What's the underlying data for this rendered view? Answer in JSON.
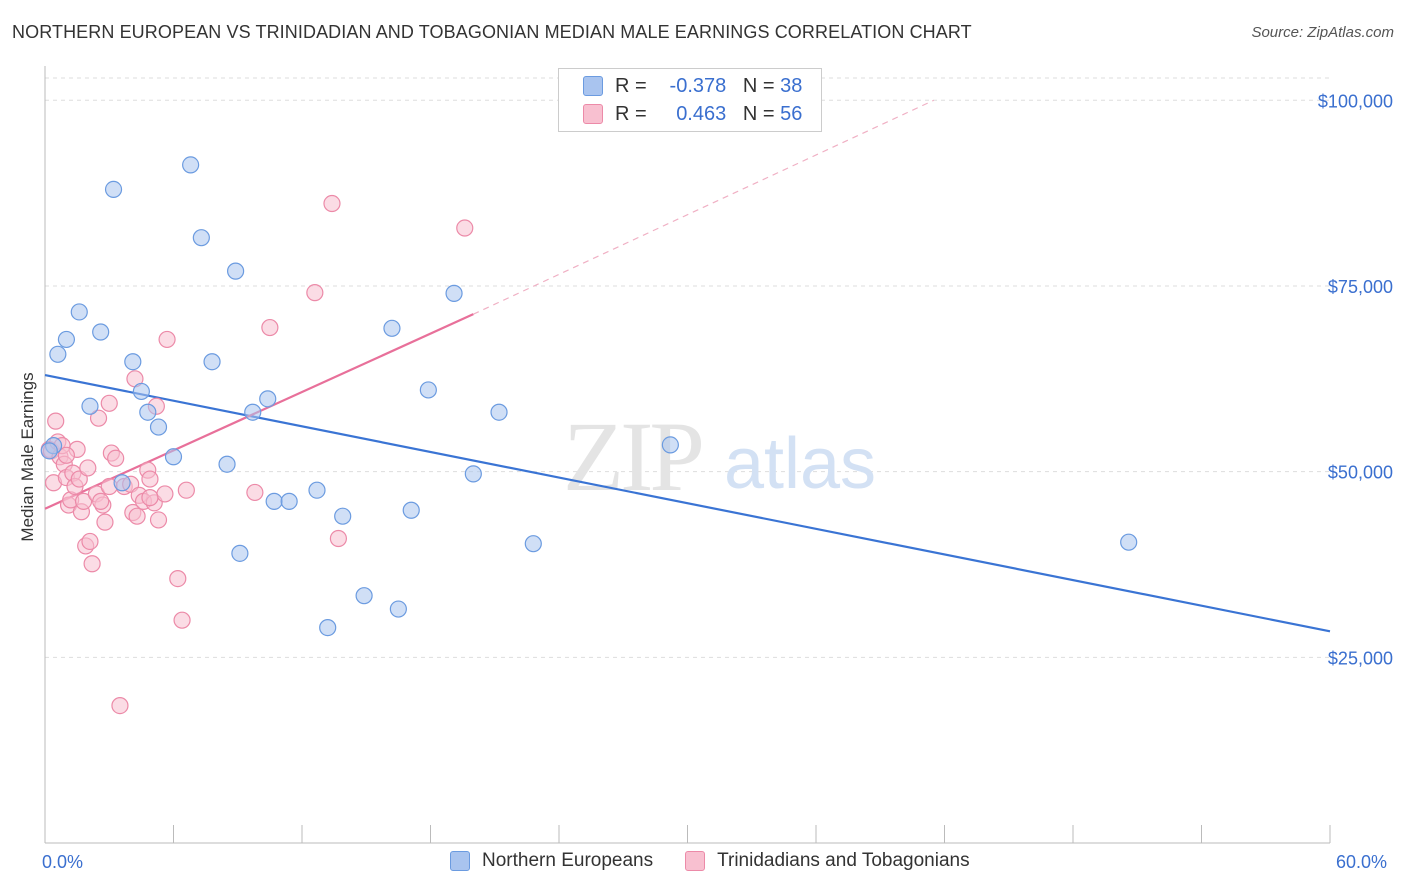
{
  "header": {
    "title": "NORTHERN EUROPEAN VS TRINIDADIAN AND TOBAGONIAN MEDIAN MALE EARNINGS CORRELATION CHART",
    "source": "Source: ZipAtlas.com"
  },
  "legend_top": {
    "rows": [
      {
        "r_label": "R =",
        "r_value": "-0.378",
        "n_label": "N =",
        "n_value": "38",
        "color": "#a9c4ef",
        "border": "#6b9be0"
      },
      {
        "r_label": "R =",
        "r_value": "0.463",
        "n_label": "N =",
        "n_value": "56",
        "color": "#f8c0d0",
        "border": "#ec8aa8"
      }
    ]
  },
  "legend_bottom": {
    "items": [
      {
        "label": "Northern Europeans",
        "color": "#a9c4ef",
        "border": "#6b9be0"
      },
      {
        "label": "Trinidadians and Tobagonians",
        "color": "#f8c0d0",
        "border": "#ec8aa8"
      }
    ]
  },
  "watermark": {
    "zip": "ZIP",
    "atlas": "atlas"
  },
  "chart_data": {
    "type": "scatter",
    "title": "NORTHERN EUROPEAN VS TRINIDADIAN AND TOBAGONIAN MEDIAN MALE EARNINGS CORRELATION CHART",
    "xlabel": "",
    "ylabel": "Median Male Earnings",
    "xlim": [
      0,
      60
    ],
    "ylim": [
      0,
      103000
    ],
    "x_tick_labels": [
      "0.0%",
      "60.0%"
    ],
    "y_ticks": [
      25000,
      50000,
      75000,
      100000
    ],
    "y_tick_labels": [
      "$25,000",
      "$50,000",
      "$75,000",
      "$100,000"
    ],
    "grid": true,
    "legend_position": "top-center",
    "series": [
      {
        "name": "Northern Europeans",
        "color": "#6b9be0",
        "fill": "#a9c4ef",
        "trend": {
          "x0": 0,
          "y0": 63000,
          "x1": 60,
          "y1": 28500,
          "dashed_to": null
        },
        "points": [
          [
            0.4,
            53500
          ],
          [
            0.6,
            65800
          ],
          [
            1.0,
            67800
          ],
          [
            1.6,
            71500
          ],
          [
            2.1,
            58800
          ],
          [
            2.6,
            68800
          ],
          [
            3.2,
            88000
          ],
          [
            3.6,
            48500
          ],
          [
            4.1,
            64800
          ],
          [
            4.5,
            60800
          ],
          [
            4.8,
            58000
          ],
          [
            5.3,
            56000
          ],
          [
            6.0,
            52000
          ],
          [
            6.8,
            91300
          ],
          [
            7.3,
            81500
          ],
          [
            7.8,
            64800
          ],
          [
            8.5,
            51000
          ],
          [
            8.9,
            77000
          ],
          [
            9.1,
            39000
          ],
          [
            9.7,
            58000
          ],
          [
            10.4,
            59800
          ],
          [
            10.7,
            46000
          ],
          [
            11.4,
            46000
          ],
          [
            12.7,
            47500
          ],
          [
            13.2,
            29000
          ],
          [
            13.9,
            44000
          ],
          [
            14.9,
            33300
          ],
          [
            16.2,
            69300
          ],
          [
            16.5,
            31500
          ],
          [
            17.1,
            44800
          ],
          [
            17.9,
            61000
          ],
          [
            19.1,
            74000
          ],
          [
            20.0,
            49700
          ],
          [
            21.2,
            58000
          ],
          [
            22.8,
            40300
          ],
          [
            29.2,
            53600
          ],
          [
            50.6,
            40500
          ],
          [
            0.2,
            52800
          ]
        ]
      },
      {
        "name": "Trinidadians and Tobagonians",
        "color": "#ec8aa8",
        "fill": "#f8c0d0",
        "trend": {
          "x0": 0,
          "y0": 45000,
          "x1": 20.0,
          "y1": 71200,
          "dash_x1": 41.5,
          "dash_y1": 100000
        },
        "points": [
          [
            0.2,
            53000
          ],
          [
            0.3,
            52800
          ],
          [
            0.4,
            48500
          ],
          [
            0.5,
            56800
          ],
          [
            0.6,
            54000
          ],
          [
            0.7,
            52000
          ],
          [
            0.9,
            51000
          ],
          [
            1.0,
            49200
          ],
          [
            1.1,
            45500
          ],
          [
            1.2,
            46200
          ],
          [
            1.3,
            49800
          ],
          [
            1.4,
            48000
          ],
          [
            1.5,
            53000
          ],
          [
            1.6,
            49000
          ],
          [
            1.7,
            44600
          ],
          [
            1.8,
            46000
          ],
          [
            1.9,
            40000
          ],
          [
            2.0,
            50500
          ],
          [
            2.1,
            40600
          ],
          [
            2.2,
            37600
          ],
          [
            2.4,
            47000
          ],
          [
            2.5,
            57200
          ],
          [
            2.7,
            45500
          ],
          [
            2.8,
            43200
          ],
          [
            3.0,
            48000
          ],
          [
            3.0,
            59200
          ],
          [
            3.1,
            52500
          ],
          [
            3.3,
            51800
          ],
          [
            3.5,
            18500
          ],
          [
            3.7,
            48000
          ],
          [
            4.0,
            48300
          ],
          [
            4.1,
            44500
          ],
          [
            4.2,
            62500
          ],
          [
            4.3,
            44000
          ],
          [
            4.4,
            46800
          ],
          [
            4.6,
            46000
          ],
          [
            4.8,
            50200
          ],
          [
            4.9,
            49000
          ],
          [
            5.1,
            45800
          ],
          [
            5.2,
            58800
          ],
          [
            5.3,
            43500
          ],
          [
            5.6,
            47000
          ],
          [
            5.7,
            67800
          ],
          [
            6.2,
            35600
          ],
          [
            6.4,
            30000
          ],
          [
            6.6,
            47500
          ],
          [
            9.8,
            47200
          ],
          [
            10.5,
            69400
          ],
          [
            12.6,
            74100
          ],
          [
            13.4,
            86100
          ],
          [
            13.7,
            41000
          ],
          [
            19.6,
            82800
          ],
          [
            0.8,
            53500
          ],
          [
            1.0,
            52200
          ],
          [
            2.6,
            46000
          ],
          [
            4.9,
            46500
          ]
        ]
      }
    ]
  }
}
